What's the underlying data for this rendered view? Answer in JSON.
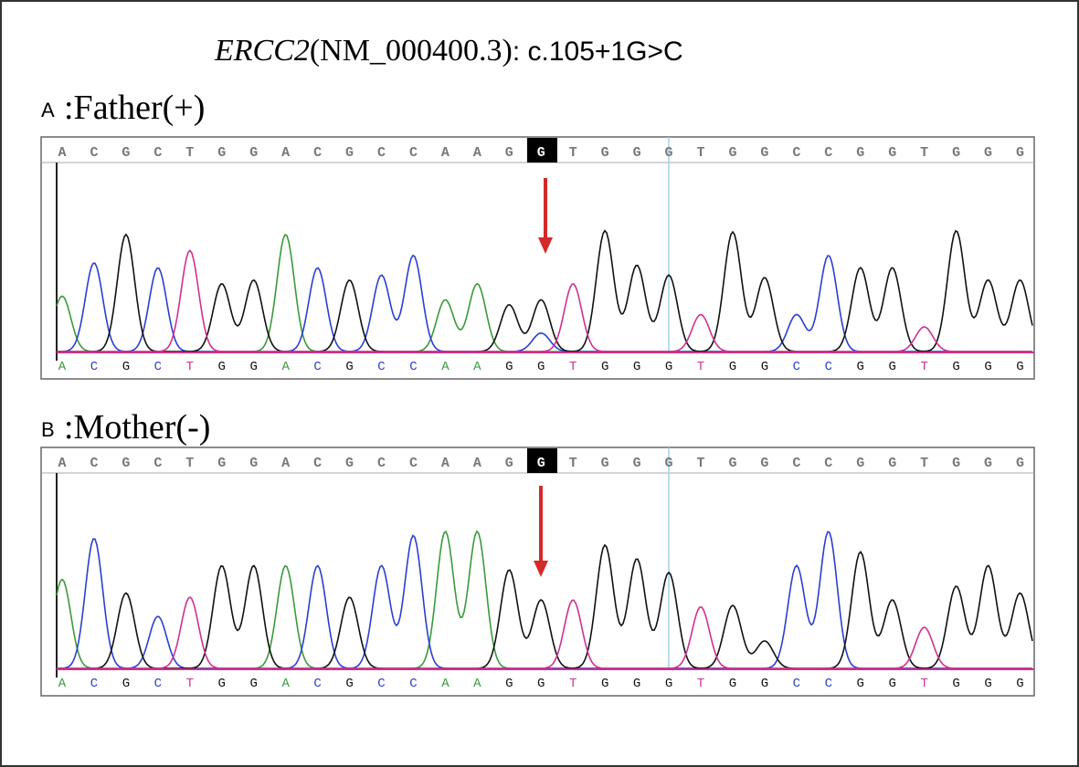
{
  "title": {
    "gene": "ERCC2",
    "accession": "(NM_000400.3)",
    "variant": ": c.105+1G>C"
  },
  "panels": [
    {
      "letter": "A",
      "label": ":Father(+)",
      "reference_sequence": [
        "A",
        "C",
        "G",
        "C",
        "T",
        "G",
        "G",
        "A",
        "C",
        "G",
        "C",
        "C",
        "A",
        "A",
        "G",
        "G",
        "T",
        "G",
        "G",
        "G",
        "T",
        "G",
        "G",
        "C",
        "C",
        "G",
        "G",
        "T",
        "G",
        "G",
        "G"
      ],
      "base_calls": [
        "A",
        "C",
        "G",
        "C",
        "T",
        "G",
        "G",
        "A",
        "C",
        "G",
        "C",
        "C",
        "A",
        "A",
        "G",
        "G",
        "T",
        "G",
        "G",
        "G",
        "T",
        "G",
        "G",
        "C",
        "C",
        "G",
        "G",
        "T",
        "G",
        "G",
        "G"
      ]
    },
    {
      "letter": "B",
      "label": ":Mother(-)",
      "reference_sequence": [
        "A",
        "C",
        "G",
        "C",
        "T",
        "G",
        "G",
        "A",
        "C",
        "G",
        "C",
        "C",
        "A",
        "A",
        "G",
        "G",
        "T",
        "G",
        "G",
        "G",
        "T",
        "G",
        "G",
        "C",
        "C",
        "G",
        "G",
        "T",
        "G",
        "G",
        "G"
      ],
      "base_calls": [
        "A",
        "C",
        "G",
        "C",
        "T",
        "G",
        "G",
        "A",
        "C",
        "G",
        "C",
        "C",
        "A",
        "A",
        "G",
        "G",
        "T",
        "G",
        "G",
        "G",
        "T",
        "G",
        "G",
        "C",
        "C",
        "G",
        "G",
        "T",
        "G",
        "G",
        "G"
      ]
    }
  ]
}
